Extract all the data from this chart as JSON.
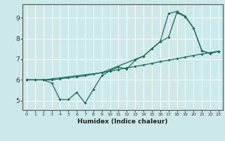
{
  "xlabel": "Humidex (Indice chaleur)",
  "background_color": "#cce8e8",
  "grid_color": "#ffffff",
  "line_color": "#1a6b5a",
  "xlim": [
    -0.5,
    23.5
  ],
  "ylim": [
    4.55,
    9.65
  ],
  "yticks": [
    5,
    6,
    7,
    8,
    9
  ],
  "xticks": [
    0,
    1,
    2,
    3,
    4,
    5,
    6,
    7,
    8,
    9,
    10,
    11,
    12,
    13,
    14,
    15,
    16,
    17,
    18,
    19,
    20,
    21,
    22,
    23
  ],
  "line1_x": [
    0,
    1,
    2,
    3,
    4,
    5,
    6,
    7,
    8,
    9,
    10,
    11,
    12,
    13,
    14,
    15,
    16,
    17,
    18,
    19,
    20,
    21,
    22,
    23
  ],
  "line1_y": [
    6.0,
    6.0,
    6.0,
    5.85,
    5.05,
    5.05,
    5.4,
    4.88,
    5.55,
    6.2,
    6.45,
    6.62,
    6.52,
    6.95,
    7.15,
    7.5,
    7.85,
    8.05,
    9.25,
    9.05,
    8.5,
    7.4,
    7.28,
    7.38
  ],
  "line2_x": [
    0,
    1,
    2,
    3,
    4,
    5,
    6,
    7,
    8,
    9,
    10,
    11,
    12,
    13,
    14,
    15,
    16,
    17,
    18,
    19,
    20,
    21,
    22,
    23
  ],
  "line2_y": [
    6.0,
    6.0,
    6.0,
    6.0,
    6.05,
    6.1,
    6.15,
    6.2,
    6.28,
    6.35,
    6.42,
    6.5,
    6.58,
    6.65,
    6.72,
    6.8,
    6.88,
    6.95,
    7.02,
    7.1,
    7.18,
    7.25,
    7.32,
    7.38
  ],
  "line3_x": [
    0,
    1,
    2,
    3,
    9,
    14,
    15,
    16,
    17,
    18,
    19,
    20,
    21,
    22,
    23
  ],
  "line3_y": [
    6.0,
    6.0,
    6.0,
    6.05,
    6.35,
    7.15,
    7.5,
    7.85,
    9.2,
    9.3,
    9.08,
    8.5,
    7.4,
    7.28,
    7.38
  ]
}
